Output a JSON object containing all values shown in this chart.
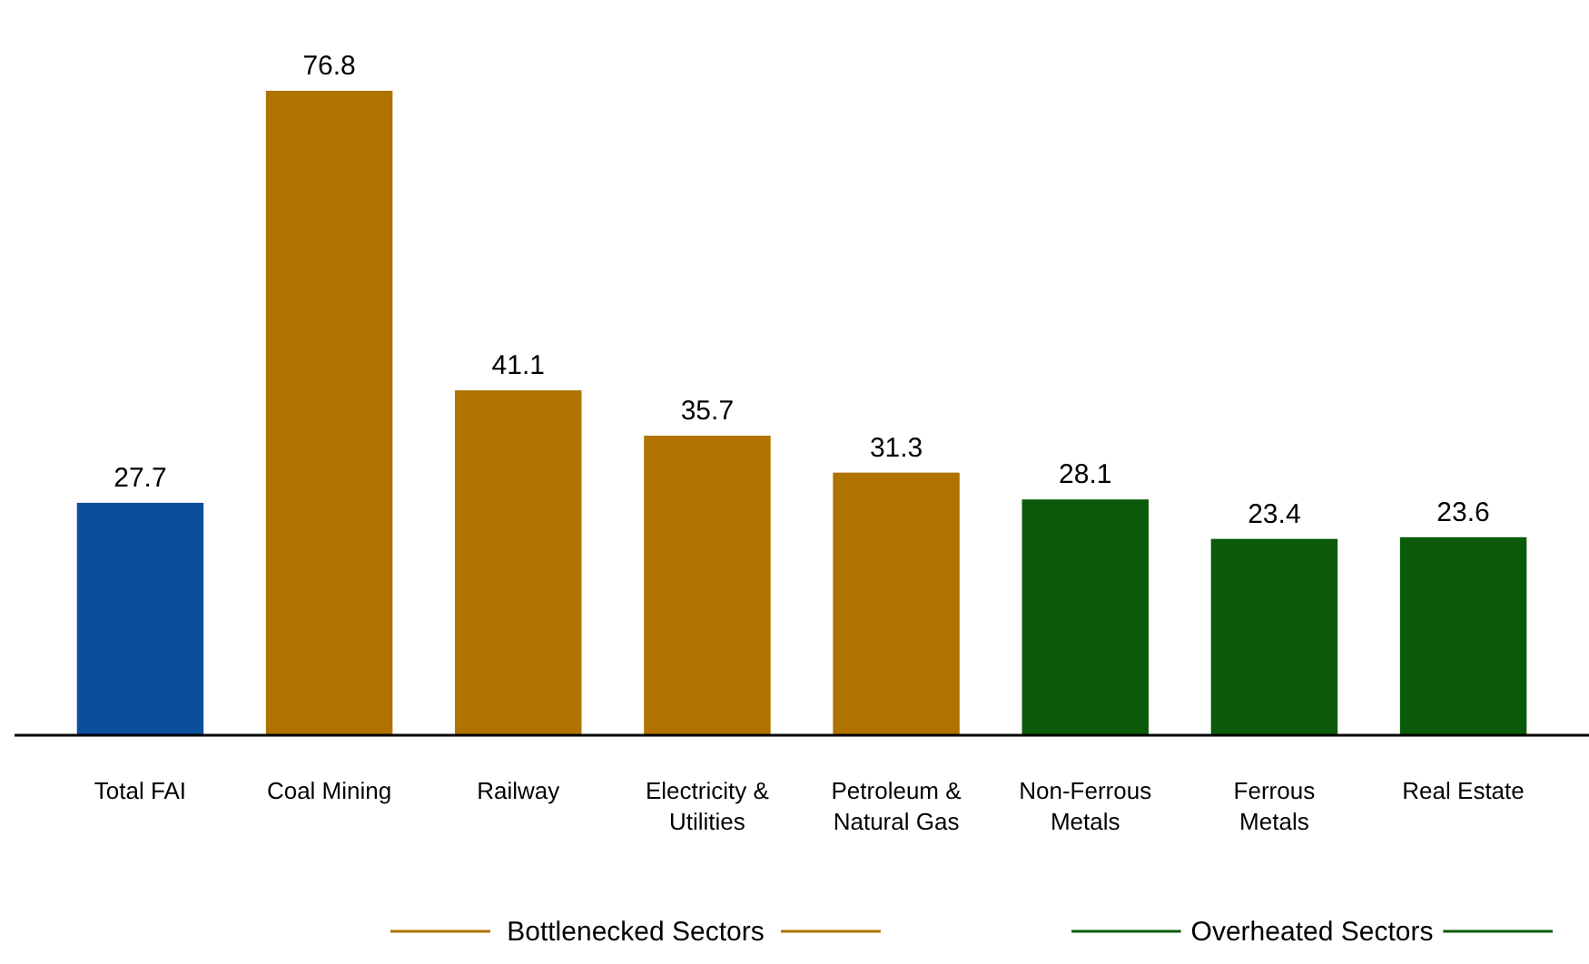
{
  "chart_data": {
    "type": "bar",
    "categories": [
      "Total FAI",
      "Coal Mining",
      "Railway",
      "Electricity & Utilities",
      "Petroleum & Natural Gas",
      "Non-Ferrous Metals",
      "Ferrous Metals",
      "Real Estate"
    ],
    "values": [
      27.7,
      76.8,
      41.1,
      35.7,
      31.3,
      28.1,
      23.4,
      23.6
    ],
    "colors": [
      "#0b4f9c",
      "#b07300",
      "#b07300",
      "#b07300",
      "#b07300",
      "#0a5a0a",
      "#0a5a0a",
      "#0a5a0a"
    ],
    "data_labels": true,
    "annotations": [
      "Bottlenecked Sectors",
      "Overheated Sectors"
    ]
  }
}
